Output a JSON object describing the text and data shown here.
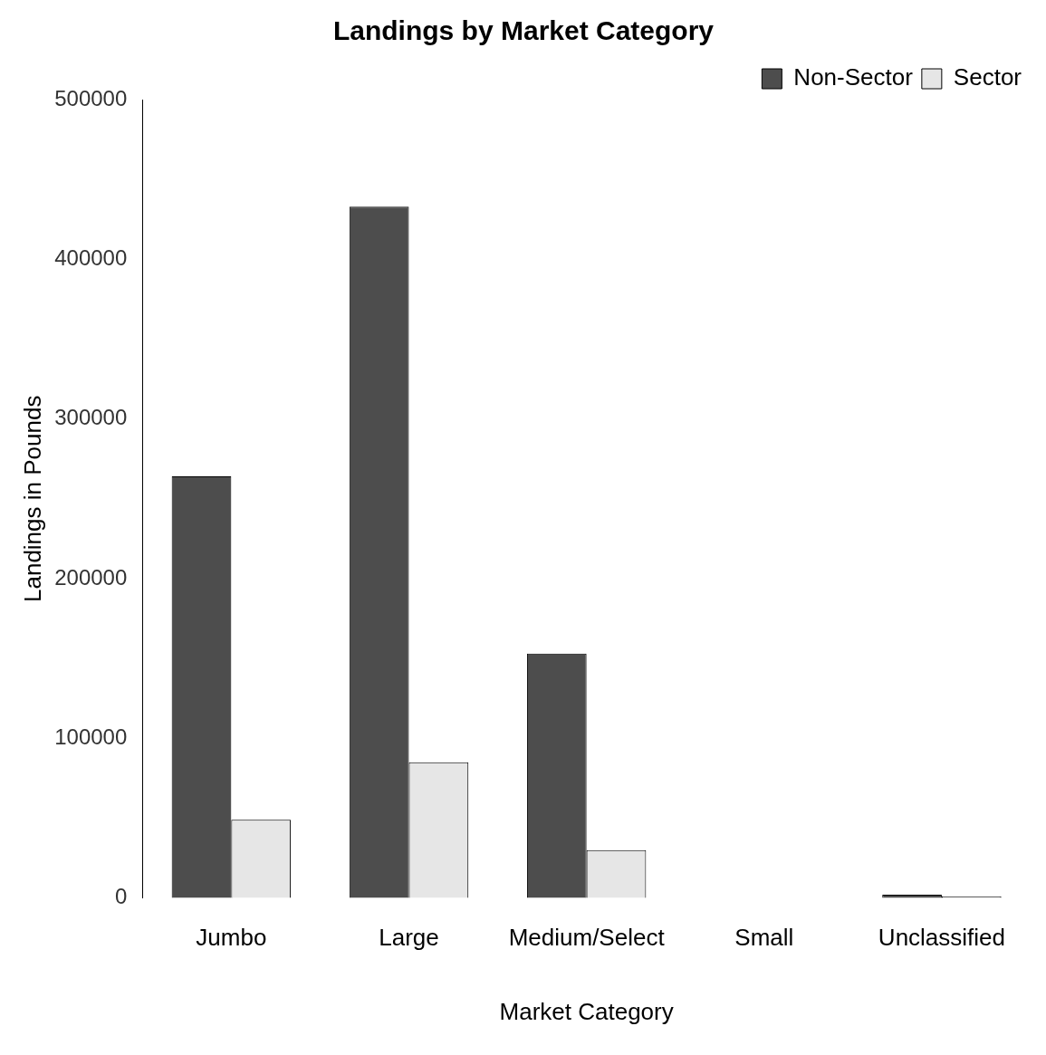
{
  "chart_data": {
    "type": "bar",
    "title": "Landings by Market Category",
    "xlabel": "Market Category",
    "ylabel": "Landings in Pounds",
    "categories": [
      "Jumbo",
      "Large",
      "Medium/Select",
      "Small",
      "Unclassified"
    ],
    "series": [
      {
        "name": "Non-Sector",
        "color": "#4d4d4d",
        "values": [
          264000,
          433000,
          153000,
          null,
          2000
        ]
      },
      {
        "name": "Sector",
        "color": "#e6e6e6",
        "values": [
          49000,
          85000,
          30000,
          null,
          1000
        ]
      }
    ],
    "ylim": [
      0,
      500000
    ],
    "yticks": [
      0,
      100000,
      200000,
      300000,
      400000,
      500000
    ],
    "grid": false,
    "legend": "top right"
  }
}
